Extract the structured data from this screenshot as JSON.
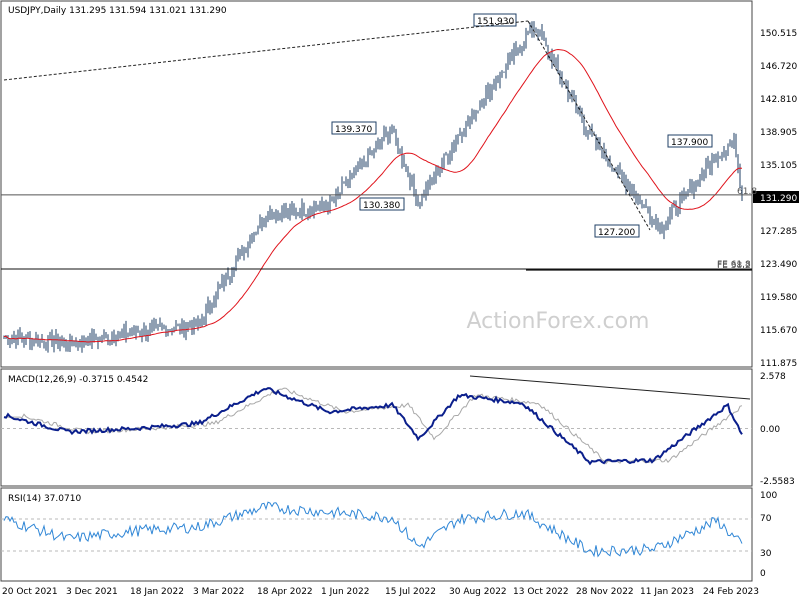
{
  "main_header": "USDJPY,Daily  131.295 131.594 131.021 131.290",
  "watermark": "ActionForex.com",
  "colors": {
    "background": "#ffffff",
    "candles": "#1f3f66",
    "moving_average": "#e0131b",
    "macd_line": "#0b1f8c",
    "macd_signal": "#a8a8a8",
    "rsi_line": "#2f86d6",
    "panel_border": "#444444",
    "dashed_ref": "#b9b9b9",
    "watermark": "#cfcfcf"
  },
  "chart_data": [
    {
      "type": "candlestick",
      "header": "USDJPY,Daily  131.295 131.594 131.021 131.290",
      "ylim": [
        111.0,
        153.5
      ],
      "y_ticks": [
        "150.515",
        "146.720",
        "142.810",
        "138.905",
        "135.105",
        "131.290",
        "127.285",
        "123.490",
        "119.580",
        "115.670",
        "111.875"
      ],
      "x_labels": [
        "20 Oct 2021",
        "3 Dec 2021",
        "18 Jan 2022",
        "3 Mar 2022",
        "18 Apr 2022",
        "1 Jun 2022",
        "15 Jul 2022",
        "30 Aug 2022",
        "13 Oct 2022",
        "28 Nov 2022",
        "11 Jan 2023",
        "24 Feb 2023"
      ],
      "last_price": 131.29,
      "last_price_label": "131.290",
      "series": [
        {
          "kind": "ohlc",
          "note": "daily candles, approximated",
          "anchors": [
            {
              "x": "20 Oct 2021",
              "close": 114.1
            },
            {
              "x": "3 Dec 2021",
              "close": 113.3
            },
            {
              "x": "18 Jan 2022",
              "close": 114.6
            },
            {
              "x": "3 Mar 2022",
              "close": 115.5
            },
            {
              "x": "28 Mar 2022",
              "close": 123.0
            },
            {
              "x": "18 Apr 2022",
              "close": 128.9
            },
            {
              "x": "1 Jun 2022",
              "close": 129.9
            },
            {
              "x": "14 Jul 2022",
              "close": 139.37
            },
            {
              "x": "2 Aug 2022",
              "close": 130.38
            },
            {
              "x": "30 Aug 2022",
              "close": 138.7
            },
            {
              "x": "21 Oct 2022",
              "close": 151.93
            },
            {
              "x": "28 Nov 2022",
              "close": 138.5
            },
            {
              "x": "16 Jan 2023",
              "close": 127.2
            },
            {
              "x": "24 Feb 2023",
              "close": 136.3
            },
            {
              "x": "8 Mar 2023",
              "close": 137.9
            },
            {
              "x": "last",
              "close": 131.29
            }
          ]
        },
        {
          "kind": "moving_average",
          "note": "red line, approximated"
        }
      ],
      "annotations": [
        {
          "label": "151.930",
          "value": 151.93
        },
        {
          "label": "139.370",
          "value": 139.37
        },
        {
          "label": "130.380",
          "value": 130.38
        },
        {
          "label": "137.900",
          "value": 137.9
        },
        {
          "label": "127.200",
          "value": 127.2
        },
        {
          "label": "61.8",
          "value": 131.29
        },
        {
          "label": "FE 38.2",
          "value": 123.17
        },
        {
          "label": "FE 61.8",
          "value": 123.17
        }
      ],
      "trendline": {
        "from": {
          "x": "20 Oct 2021",
          "y": 142.1
        },
        "to": {
          "x": "13 Oct 2022",
          "y": 151.93
        }
      }
    },
    {
      "type": "line",
      "header": "MACD(12,26,9) -0.3715 0.4542",
      "ylim": [
        -3.2,
        3.2
      ],
      "y_ticks": [
        "2.578",
        "0.00",
        "-2.5583"
      ],
      "ref_levels": [
        0.0
      ],
      "series": [
        {
          "name": "MACD",
          "anchors": [
            {
              "x": "20 Oct 2021",
              "y": 0.8
            },
            {
              "x": "3 Dec 2021",
              "y": -0.2
            },
            {
              "x": "18 Jan 2022",
              "y": 0.0
            },
            {
              "x": "3 Mar 2022",
              "y": 0.3
            },
            {
              "x": "18 Apr 2022",
              "y": 2.4
            },
            {
              "x": "1 Jun 2022",
              "y": 1.0
            },
            {
              "x": "15 Jul 2022",
              "y": 1.4
            },
            {
              "x": "2 Aug 2022",
              "y": -0.6
            },
            {
              "x": "30 Aug 2022",
              "y": 2.0
            },
            {
              "x": "13 Oct 2022",
              "y": 1.5
            },
            {
              "x": "28 Nov 2022",
              "y": -2.0
            },
            {
              "x": "11 Jan 2023",
              "y": -1.9
            },
            {
              "x": "3 Mar 2023",
              "y": 1.4
            },
            {
              "x": "last",
              "y": -0.3715
            }
          ]
        },
        {
          "name": "Signal",
          "note": "lagged, approximated"
        }
      ],
      "trendline": {
        "from": {
          "x": "30 Aug 2022",
          "y": 2.35
        },
        "to": {
          "x": "last",
          "y": 1.28
        }
      }
    },
    {
      "type": "line",
      "header": "RSI(14) 37.0710",
      "ylim": [
        0,
        100
      ],
      "y_ticks": [
        "100",
        "70",
        "30",
        "0"
      ],
      "ref_levels": [
        30,
        70
      ],
      "series": [
        {
          "name": "RSI",
          "anchors": [
            {
              "x": "20 Oct 2021",
              "y": 70
            },
            {
              "x": "3 Dec 2021",
              "y": 45
            },
            {
              "x": "18 Jan 2022",
              "y": 55
            },
            {
              "x": "3 Mar 2022",
              "y": 60
            },
            {
              "x": "18 Apr 2022",
              "y": 85
            },
            {
              "x": "15 Jul 2022",
              "y": 72
            },
            {
              "x": "2 Aug 2022",
              "y": 35
            },
            {
              "x": "30 Aug 2022",
              "y": 70
            },
            {
              "x": "13 Oct 2022",
              "y": 78
            },
            {
              "x": "28 Nov 2022",
              "y": 30
            },
            {
              "x": "11 Jan 2023",
              "y": 32
            },
            {
              "x": "24 Feb 2023",
              "y": 68
            },
            {
              "x": "last",
              "y": 37.071
            }
          ]
        }
      ]
    }
  ]
}
